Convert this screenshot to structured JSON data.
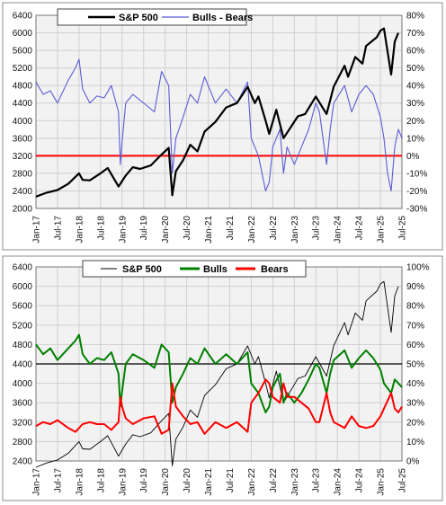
{
  "chart_data": [
    {
      "type": "line",
      "x_range": [
        "2017-01",
        "2025-07"
      ],
      "x_tick_labels": [
        "Jan-17",
        "Jul-17",
        "Jan-18",
        "Jul-18",
        "Jan-19",
        "Jul-19",
        "Jan-20",
        "Jul-20",
        "Jan-21",
        "Jul-21",
        "Jan-22",
        "Jul-22",
        "Jan-23",
        "Jul-23",
        "Jan-24",
        "Jul-24",
        "Jan-25",
        "Jul-25"
      ],
      "ylim_left": [
        2000,
        6400
      ],
      "y_ticks_left": [
        "2000",
        "2400",
        "2800",
        "3200",
        "3600",
        "4000",
        "4400",
        "4800",
        "5200",
        "5600",
        "6000",
        "6400"
      ],
      "ylim_right": [
        -30,
        80
      ],
      "y_ticks_right": [
        "-30%",
        "-20%",
        "-10%",
        "0%",
        "10%",
        "20%",
        "30%",
        "40%",
        "50%",
        "60%",
        "70%",
        "80%"
      ],
      "grid": true,
      "legend": "top-left",
      "reference_line": {
        "axis": "right",
        "value": 0,
        "color": "#ff0000"
      },
      "series": [
        {
          "name": "S&P 500",
          "axis": "left",
          "color": "#000000",
          "x": [
            "2017-01",
            "2017-04",
            "2017-07",
            "2017-10",
            "2018-01",
            "2018-02",
            "2018-04",
            "2018-07",
            "2018-09",
            "2018-12",
            "2019-02",
            "2019-04",
            "2019-06",
            "2019-09",
            "2019-12",
            "2020-02",
            "2020-03",
            "2020-04",
            "2020-06",
            "2020-08",
            "2020-10",
            "2020-12",
            "2021-03",
            "2021-06",
            "2021-09",
            "2021-12",
            "2022-02",
            "2022-03",
            "2022-05",
            "2022-06",
            "2022-08",
            "2022-10",
            "2022-12",
            "2023-02",
            "2023-04",
            "2023-07",
            "2023-10",
            "2023-12",
            "2024-03",
            "2024-04",
            "2024-06",
            "2024-08",
            "2024-09",
            "2024-12",
            "2025-01",
            "2025-02",
            "2025-04",
            "2025-05",
            "2025-06"
          ],
          "values": [
            2270,
            2360,
            2420,
            2560,
            2800,
            2650,
            2640,
            2800,
            2920,
            2500,
            2750,
            2940,
            2900,
            2980,
            3230,
            3380,
            2300,
            2850,
            3100,
            3450,
            3300,
            3750,
            3970,
            4300,
            4400,
            4770,
            4400,
            4550,
            4000,
            3700,
            4250,
            3600,
            3850,
            4100,
            4150,
            4550,
            4150,
            4780,
            5250,
            5000,
            5450,
            5300,
            5700,
            5900,
            6050,
            6100,
            5050,
            5800,
            6000
          ]
        },
        {
          "name": "Bulls - Bears",
          "axis": "right",
          "color": "#5b5bd6",
          "x": [
            "2017-01",
            "2017-03",
            "2017-05",
            "2017-07",
            "2017-10",
            "2017-12",
            "2018-01",
            "2018-02",
            "2018-04",
            "2018-06",
            "2018-08",
            "2018-10",
            "2018-12",
            "2018-12.5",
            "2019-01",
            "2019-02",
            "2019-04",
            "2019-07",
            "2019-10",
            "2019-12",
            "2020-02",
            "2020-03",
            "2020-04",
            "2020-06",
            "2020-08",
            "2020-10",
            "2020-12",
            "2021-03",
            "2021-06",
            "2021-09",
            "2021-12",
            "2022-01",
            "2022-03",
            "2022-05",
            "2022-06",
            "2022-07",
            "2022-09",
            "2022-10",
            "2022-11",
            "2023-01",
            "2023-03",
            "2023-05",
            "2023-07",
            "2023-08",
            "2023-10",
            "2023-11",
            "2023-12",
            "2024-03",
            "2024-05",
            "2024-07",
            "2024-09",
            "2024-11",
            "2025-01",
            "2025-02",
            "2025-03",
            "2025-04",
            "2025-05",
            "2025-06",
            "2025-07"
          ],
          "values": [
            42,
            35,
            37,
            30,
            43,
            50,
            55,
            38,
            30,
            34,
            33,
            40,
            25,
            -5,
            8,
            30,
            35,
            30,
            25,
            48,
            40,
            -10,
            10,
            22,
            35,
            30,
            45,
            30,
            38,
            30,
            42,
            10,
            0,
            -20,
            -15,
            5,
            15,
            -10,
            5,
            -5,
            5,
            15,
            30,
            25,
            -5,
            15,
            30,
            40,
            25,
            35,
            40,
            35,
            22,
            10,
            -10,
            -20,
            5,
            15,
            10
          ]
        }
      ]
    },
    {
      "type": "line",
      "x_range": [
        "2017-01",
        "2025-07"
      ],
      "x_tick_labels": [
        "Jan-17",
        "Jul-17",
        "Jan-18",
        "Jul-18",
        "Jan-19",
        "Jul-19",
        "Jan-20",
        "Jul-20",
        "Jan-21",
        "Jul-21",
        "Jan-22",
        "Jul-22",
        "Jan-23",
        "Jul-23",
        "Jan-24",
        "Jul-24",
        "Jan-25",
        "Jul-25"
      ],
      "ylim_left": [
        2400,
        6400
      ],
      "y_ticks_left": [
        "2400",
        "2800",
        "3200",
        "3600",
        "4000",
        "4400",
        "4800",
        "5200",
        "5600",
        "6000",
        "6400"
      ],
      "ylim_right": [
        0,
        100
      ],
      "y_ticks_right": [
        "0%",
        "10%",
        "20%",
        "30%",
        "40%",
        "50%",
        "60%",
        "70%",
        "80%",
        "90%",
        "100%"
      ],
      "grid": true,
      "legend": "top-center",
      "reference_line": {
        "axis": "right",
        "value": 50,
        "color": "#000000"
      },
      "series": [
        {
          "name": "S&P 500",
          "axis": "left",
          "color": "#000000",
          "x": [
            "2017-01",
            "2017-04",
            "2017-07",
            "2017-10",
            "2018-01",
            "2018-02",
            "2018-04",
            "2018-07",
            "2018-09",
            "2018-12",
            "2019-02",
            "2019-04",
            "2019-06",
            "2019-09",
            "2019-12",
            "2020-02",
            "2020-03",
            "2020-04",
            "2020-06",
            "2020-08",
            "2020-10",
            "2020-12",
            "2021-03",
            "2021-06",
            "2021-09",
            "2021-12",
            "2022-02",
            "2022-03",
            "2022-05",
            "2022-06",
            "2022-08",
            "2022-10",
            "2022-12",
            "2023-02",
            "2023-04",
            "2023-07",
            "2023-10",
            "2023-12",
            "2024-03",
            "2024-04",
            "2024-06",
            "2024-08",
            "2024-09",
            "2024-12",
            "2025-01",
            "2025-02",
            "2025-04",
            "2025-05",
            "2025-06"
          ],
          "values": [
            2270,
            2360,
            2420,
            2560,
            2800,
            2650,
            2640,
            2800,
            2920,
            2500,
            2750,
            2940,
            2900,
            2980,
            3230,
            3380,
            2300,
            2850,
            3100,
            3450,
            3300,
            3750,
            3970,
            4300,
            4400,
            4770,
            4400,
            4550,
            4000,
            3700,
            4250,
            3600,
            3850,
            4100,
            4150,
            4550,
            4150,
            4780,
            5250,
            5000,
            5450,
            5300,
            5700,
            5900,
            6050,
            6100,
            5050,
            5800,
            6000
          ]
        },
        {
          "name": "Bulls",
          "axis": "right",
          "color": "#008000",
          "x": [
            "2017-01",
            "2017-03",
            "2017-05",
            "2017-07",
            "2017-10",
            "2017-12",
            "2018-01",
            "2018-02",
            "2018-04",
            "2018-06",
            "2018-08",
            "2018-10",
            "2018-12",
            "2018-12.5",
            "2019-01",
            "2019-02",
            "2019-04",
            "2019-07",
            "2019-10",
            "2019-12",
            "2020-02",
            "2020-03",
            "2020-04",
            "2020-06",
            "2020-08",
            "2020-10",
            "2020-12",
            "2021-03",
            "2021-06",
            "2021-09",
            "2021-12",
            "2022-01",
            "2022-03",
            "2022-05",
            "2022-06",
            "2022-07",
            "2022-09",
            "2022-10",
            "2022-11",
            "2023-01",
            "2023-03",
            "2023-05",
            "2023-07",
            "2023-08",
            "2023-10",
            "2023-11",
            "2023-12",
            "2024-03",
            "2024-05",
            "2024-07",
            "2024-09",
            "2024-11",
            "2025-01",
            "2025-02",
            "2025-04",
            "2025-05",
            "2025-06",
            "2025-07"
          ],
          "values": [
            60,
            55,
            58,
            52,
            58,
            62,
            65,
            55,
            50,
            53,
            52,
            56,
            45,
            28,
            36,
            50,
            55,
            52,
            48,
            60,
            56,
            30,
            38,
            45,
            53,
            50,
            58,
            50,
            55,
            50,
            56,
            40,
            35,
            25,
            28,
            38,
            45,
            30,
            35,
            30,
            35,
            42,
            50,
            48,
            35,
            45,
            52,
            57,
            48,
            53,
            57,
            53,
            47,
            40,
            35,
            42,
            40,
            38
          ]
        },
        {
          "name": "Bears",
          "axis": "right",
          "color": "#ff0000",
          "x": [
            "2017-01",
            "2017-03",
            "2017-05",
            "2017-07",
            "2017-10",
            "2017-12",
            "2018-01",
            "2018-02",
            "2018-04",
            "2018-06",
            "2018-08",
            "2018-10",
            "2018-12",
            "2018-12.5",
            "2019-01",
            "2019-02",
            "2019-04",
            "2019-07",
            "2019-10",
            "2019-12",
            "2020-02",
            "2020-03",
            "2020-04",
            "2020-06",
            "2020-08",
            "2020-10",
            "2020-12",
            "2021-03",
            "2021-06",
            "2021-09",
            "2021-12",
            "2022-01",
            "2022-03",
            "2022-05",
            "2022-06",
            "2022-07",
            "2022-09",
            "2022-10",
            "2022-11",
            "2023-01",
            "2023-03",
            "2023-05",
            "2023-07",
            "2023-08",
            "2023-10",
            "2023-11",
            "2023-12",
            "2024-03",
            "2024-05",
            "2024-07",
            "2024-09",
            "2024-11",
            "2025-01",
            "2025-02",
            "2025-04",
            "2025-05",
            "2025-06",
            "2025-07"
          ],
          "values": [
            18,
            20,
            19,
            21,
            17,
            15,
            17,
            19,
            20,
            19,
            19,
            16,
            20,
            33,
            28,
            22,
            19,
            22,
            23,
            14,
            16,
            40,
            28,
            23,
            19,
            20,
            14,
            20,
            17,
            20,
            15,
            30,
            35,
            42,
            40,
            33,
            30,
            40,
            33,
            33,
            30,
            27,
            20,
            20,
            35,
            25,
            20,
            17,
            23,
            18,
            17,
            18,
            23,
            27,
            35,
            27,
            25,
            28
          ]
        }
      ]
    }
  ]
}
